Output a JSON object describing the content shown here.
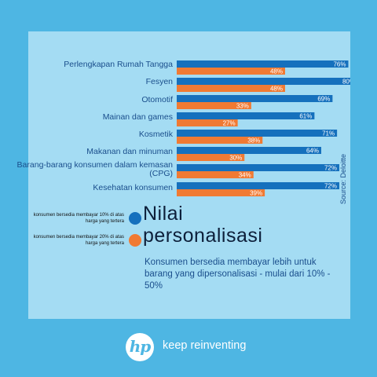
{
  "chart_data": {
    "type": "bar",
    "orientation": "horizontal",
    "categories": [
      "Perlengkapan Rumah Tangga",
      "Fesyen",
      "Otomotif",
      "Mainan dan games",
      "Kosmetik",
      "Makanan dan minuman",
      "Barang-barang konsumen dalam kemasan (CPG)",
      "Kesehatan konsumen"
    ],
    "series": [
      {
        "name": "konsumen bersedia membayar 10% di atas harga yang tertera",
        "color": "#1570bd",
        "values": [
          76,
          80,
          69,
          61,
          71,
          64,
          72,
          72
        ],
        "labels": [
          "76%",
          "80%",
          "69%",
          "61%",
          "71%",
          "64%",
          "72%",
          "72%"
        ]
      },
      {
        "name": "konsumen bersedia membayar 20% di atas harga yang tertera",
        "color": "#f07a33",
        "values": [
          48,
          48,
          33,
          27,
          38,
          30,
          34,
          39
        ],
        "labels": [
          "48%",
          "48%",
          "33%",
          "27%",
          "38%",
          "30%",
          "34%",
          "39%"
        ]
      }
    ],
    "xlim": [
      0,
      80
    ],
    "grid": false,
    "legend_position": "bottom-left"
  },
  "headline": {
    "line1": "Nilai",
    "line2": "personalisasi"
  },
  "subtext": "Konsumen bersedia membayar lebih untuk barang yang dipersonalisasi - mulai dari 10% - 50%",
  "source": "Source: Deloitte",
  "brand": {
    "logo_text": "hp",
    "tagline": "keep reinventing"
  },
  "colors": {
    "background": "#4eb6e3",
    "panel": "#a4dcf3",
    "text": "#1a4e8c"
  }
}
